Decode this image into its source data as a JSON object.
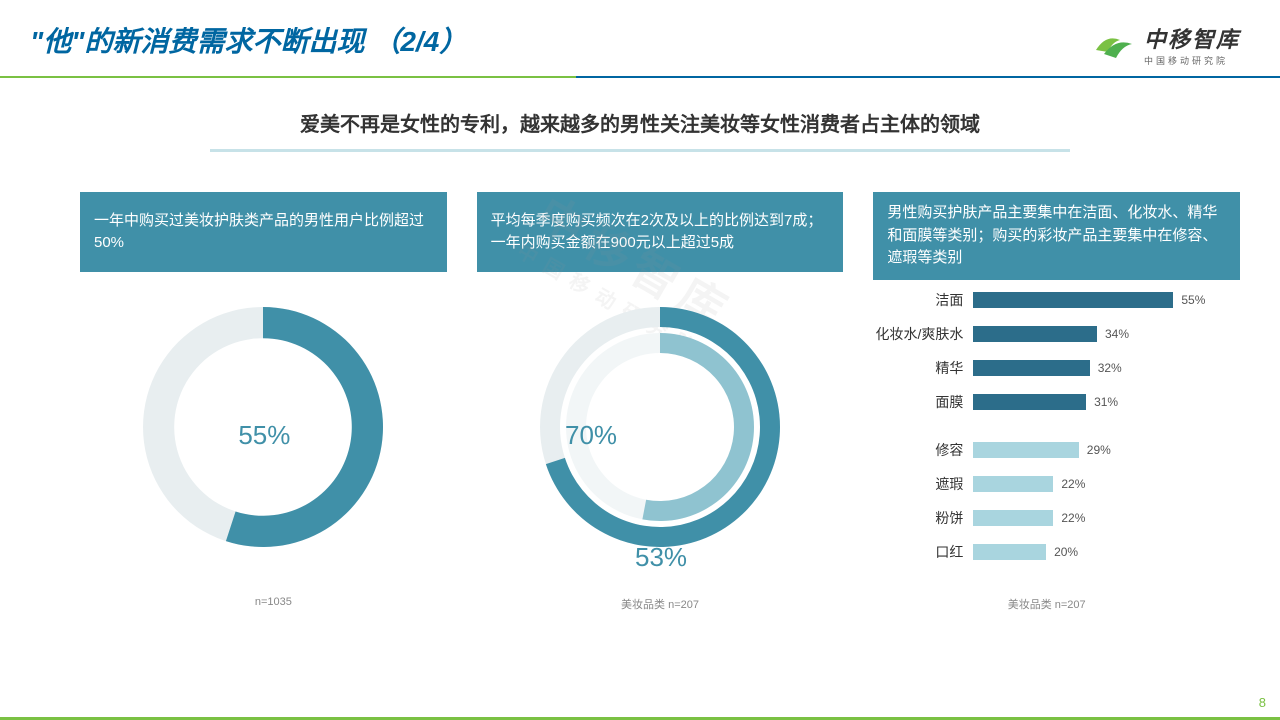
{
  "header": {
    "title_prefix": "\"他\"的新消费需求不断出现",
    "title_paren": "（2/4）",
    "logo_big": "中移智库",
    "logo_small": "中国移动研究院"
  },
  "subtitle": "爱美不再是女性的专利，越来越多的男性关注美妆等女性消费者占主体的领域",
  "col1": {
    "caption": "一年中购买过美妆护肤类产品的男性用户比例超过50%",
    "donut": {
      "value": 55,
      "label": "55%",
      "arc_color": "#4090a8",
      "track_color": "#e8eef0",
      "inner_radius": 0.74,
      "outer_radius": 1.0
    },
    "footnote": "n=1035"
  },
  "col2": {
    "caption": "平均每季度购买频次在2次及以上的比例达到7成；一年内购买金额在900元以上超过5成",
    "donut_outer": {
      "value": 70,
      "label": "70%",
      "arc_color": "#4090a8",
      "track_color": "#e8eef0"
    },
    "donut_inner": {
      "value": 53,
      "label": "53%",
      "arc_color": "#8fc3d0",
      "track_color": "#f2f6f7"
    },
    "footnote": "美妆品类 n=207"
  },
  "col3": {
    "caption": "男性购买护肤产品主要集中在洁面、化妆水、精华和面膜等类别；购买的彩妆产品主要集中在修容、遮瑕等类别",
    "bars": {
      "max": 55,
      "group_a_color": "#2c6d8a",
      "group_b_color": "#a9d5df",
      "items": [
        {
          "label": "洁面",
          "value": 55,
          "group": "a"
        },
        {
          "label": "化妆水/爽肤水",
          "value": 34,
          "group": "a"
        },
        {
          "label": "精华",
          "value": 32,
          "group": "a"
        },
        {
          "label": "面膜",
          "value": 31,
          "group": "a"
        },
        {
          "label": "修容",
          "value": 29,
          "group": "b"
        },
        {
          "label": "遮瑕",
          "value": 22,
          "group": "b"
        },
        {
          "label": "粉饼",
          "value": 22,
          "group": "b"
        },
        {
          "label": "口红",
          "value": 20,
          "group": "b"
        }
      ]
    },
    "footnote": "美妆品类 n=207"
  },
  "page_number": "8",
  "watermark": {
    "line1": "中移智库",
    "line2": "中国移动研究院"
  },
  "colors": {
    "title": "#0066a1",
    "caption_bg": "#4090a8",
    "green": "#7ac143"
  }
}
